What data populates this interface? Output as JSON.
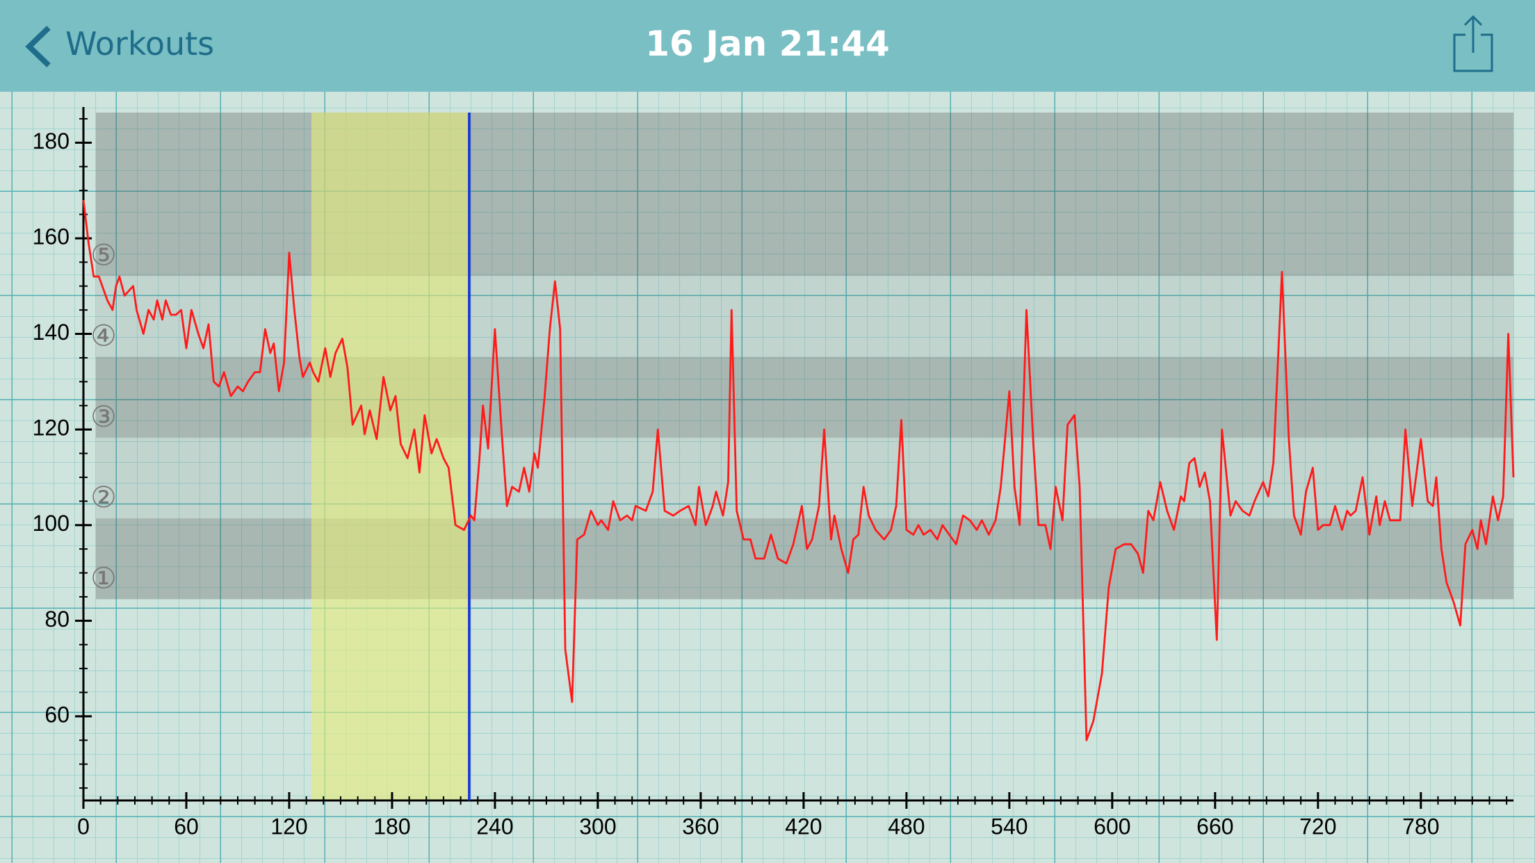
{
  "nav": {
    "back": "Workouts",
    "title": "16 Jan 21:44"
  },
  "chart_data": {
    "type": "line",
    "color": "#ff1a1a",
    "xlim": [
      0,
      834
    ],
    "ylim": [
      42.4,
      186.3
    ],
    "xticks": [
      0,
      60,
      120,
      180,
      240,
      300,
      360,
      420,
      480,
      540,
      600,
      660,
      720,
      780
    ],
    "yticks": [
      60,
      80,
      100,
      120,
      140,
      160,
      180
    ],
    "zones": [
      84.5,
      101.4,
      118.3,
      135.2,
      152.1
    ],
    "zone_labels": [
      "①",
      "②",
      "③",
      "④",
      "⑤"
    ],
    "highlight_range": [
      133,
      225
    ],
    "cursor_x": 225,
    "x": [
      0,
      3,
      6,
      9,
      14,
      17,
      19,
      21,
      24,
      29,
      31,
      35,
      38,
      41,
      43,
      46,
      48,
      51,
      54,
      57,
      60,
      63,
      67,
      70,
      73,
      76,
      79,
      82,
      86,
      90,
      93,
      96,
      100,
      103,
      106,
      109,
      111,
      114,
      117,
      120,
      123,
      126,
      128,
      132,
      134,
      137,
      141,
      144,
      147,
      151,
      154,
      157,
      162,
      164,
      167,
      171,
      175,
      179,
      182,
      185,
      189,
      193,
      196,
      199,
      203,
      206,
      210,
      213,
      217,
      222,
      226,
      228,
      231,
      233,
      236,
      240,
      244,
      247,
      250,
      254,
      257,
      260,
      263,
      265,
      269,
      272,
      275,
      278,
      281,
      285,
      288,
      292,
      296,
      300,
      302,
      306,
      309,
      313,
      317,
      320,
      322,
      328,
      332,
      335,
      339,
      344,
      348,
      353,
      357,
      359,
      363,
      367,
      369,
      373,
      376,
      378,
      381,
      385,
      389,
      392,
      397,
      401,
      405,
      410,
      414,
      419,
      422,
      425,
      429,
      432,
      436,
      438,
      442,
      446,
      449,
      452,
      455,
      458,
      462,
      467,
      471,
      474,
      477,
      480,
      484,
      487,
      490,
      494,
      498,
      501,
      505,
      509,
      513,
      517,
      521,
      524,
      528,
      532,
      535,
      540,
      543,
      546,
      550,
      554,
      557,
      561,
      564,
      567,
      571,
      574,
      578,
      581,
      585,
      589,
      594,
      598,
      602,
      607,
      611,
      615,
      618,
      621,
      624,
      628,
      632,
      636,
      640,
      642,
      645,
      648,
      651,
      654,
      657,
      661,
      664,
      669,
      672,
      676,
      680,
      683,
      688,
      691,
      694,
      699,
      703,
      706,
      710,
      713,
      717,
      720,
      723,
      727,
      730,
      734,
      737,
      739,
      742,
      746,
      750,
      754,
      756,
      759,
      762,
      768,
      771,
      775,
      780,
      784,
      787,
      789,
      792,
      795,
      799,
      803,
      806,
      810,
      813,
      815,
      818,
      822,
      825,
      828,
      831,
      834
    ],
    "values": [
      168,
      159,
      152,
      152,
      147,
      145,
      150,
      152,
      148,
      150,
      145,
      140,
      145,
      143,
      147,
      143,
      147,
      144,
      144,
      145,
      137,
      145,
      140,
      137,
      142,
      130,
      129,
      132,
      127,
      129,
      128,
      130,
      132,
      132,
      141,
      136,
      138,
      128,
      134,
      157,
      145,
      135,
      131,
      134,
      132,
      130,
      137,
      131,
      136,
      139,
      133,
      121,
      125,
      119,
      124,
      118,
      131,
      124,
      127,
      117,
      114,
      120,
      111,
      123,
      115,
      118,
      114,
      112,
      100,
      99,
      102,
      101,
      114,
      125,
      116,
      141,
      119,
      104,
      108,
      107,
      112,
      107,
      115,
      112,
      127,
      141,
      151,
      141,
      74,
      63,
      97,
      98,
      103,
      100,
      101,
      99,
      105,
      101,
      102,
      101,
      104,
      103,
      107,
      120,
      103,
      102,
      103,
      104,
      100,
      108,
      100,
      104,
      107,
      102,
      109,
      145,
      103,
      97,
      97,
      93,
      93,
      98,
      93,
      92,
      96,
      104,
      95,
      97,
      104,
      120,
      97,
      102,
      95,
      90,
      97,
      98,
      108,
      102,
      99,
      97,
      99,
      104,
      122,
      99,
      98,
      100,
      98,
      99,
      97,
      100,
      98,
      96,
      102,
      101,
      99,
      101,
      98,
      101,
      108,
      128,
      108,
      100,
      145,
      117,
      100,
      100,
      95,
      108,
      101,
      121,
      123,
      108,
      55,
      59,
      69,
      87,
      95,
      96,
      96,
      94,
      90,
      103,
      101,
      109,
      103,
      99,
      106,
      105,
      113,
      114,
      108,
      111,
      105,
      76,
      120,
      102,
      105,
      103,
      102,
      105,
      109,
      106,
      113,
      153,
      118,
      102,
      98,
      107,
      112,
      99,
      100,
      100,
      104,
      99,
      103,
      102,
      103,
      110,
      98,
      106,
      100,
      105,
      101,
      101,
      120,
      104,
      118,
      105,
      104,
      110,
      95,
      88,
      84,
      79,
      96,
      99,
      95,
      101,
      96,
      106,
      101,
      106,
      140,
      110
    ]
  }
}
